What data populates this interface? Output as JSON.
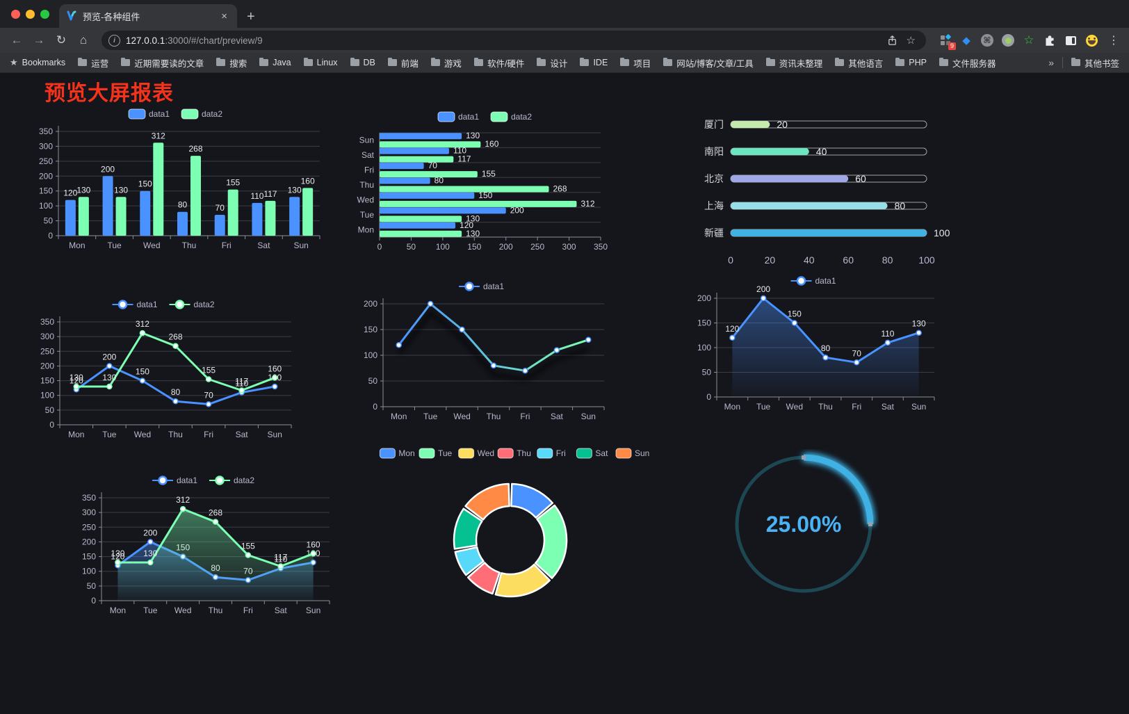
{
  "browser": {
    "tab": {
      "title": "预览-各种组件",
      "close_glyph": "×",
      "new_tab_glyph": "+"
    },
    "nav": {
      "back": "←",
      "forward": "→",
      "reload": "↻",
      "home": "⌂"
    },
    "url": {
      "host": "127.0.0.1",
      "rest": ":3000/#/chart/preview/9"
    },
    "omnibox_icons": {
      "star": "☆"
    },
    "extensions": {
      "badge": "9",
      "gem": "◆",
      "command": "⌘",
      "menu": "⋮"
    },
    "bookmarks": [
      "Bookmarks",
      "运营",
      "近期需要读的文章",
      "搜索",
      "Java",
      "Linux",
      "DB",
      "前端",
      "游戏",
      "软件/硬件",
      "设计",
      "IDE",
      "项目",
      "网站/博客/文章/工具",
      "资讯未整理",
      "其他语言",
      "PHP",
      "文件服务器"
    ],
    "bookmarks_overflow": "»",
    "other_bookmarks": "其他书签",
    "bookmark_star_glyph": "★"
  },
  "page": {
    "title": "预览大屏报表"
  },
  "chart_data": {
    "note": "see charts"
  },
  "charts": {
    "vbar": {
      "type": "bar",
      "categories": [
        "Mon",
        "Tue",
        "Wed",
        "Thu",
        "Fri",
        "Sat",
        "Sun"
      ],
      "series": [
        {
          "name": "data1",
          "color": "#4992ff",
          "values": [
            120,
            200,
            150,
            80,
            70,
            110,
            130
          ]
        },
        {
          "name": "data2",
          "color": "#7cffb2",
          "values": [
            130,
            130,
            312,
            268,
            155,
            117,
            160
          ]
        }
      ],
      "y": {
        "min": 0,
        "max": 350,
        "step": 50
      },
      "labels": true
    },
    "hbar": {
      "type": "hbar",
      "categories": [
        "Mon",
        "Tue",
        "Wed",
        "Thu",
        "Fri",
        "Sat",
        "Sun"
      ],
      "series": [
        {
          "name": "data1",
          "color": "#4992ff",
          "values": [
            120,
            200,
            150,
            80,
            70,
            110,
            130
          ]
        },
        {
          "name": "data2",
          "color": "#7cffb2",
          "values": [
            130,
            130,
            312,
            268,
            155,
            117,
            160
          ]
        }
      ],
      "x": {
        "min": 0,
        "max": 350,
        "step": 50
      },
      "labels": true
    },
    "progress": {
      "type": "progress",
      "max": 100,
      "items": [
        {
          "label": "厦门",
          "value": 20,
          "color": "#c4ebad"
        },
        {
          "label": "南阳",
          "value": 40,
          "color": "#6be6c1"
        },
        {
          "label": "北京",
          "value": 60,
          "color": "#a0a7e6"
        },
        {
          "label": "上海",
          "value": 80,
          "color": "#96dee8"
        },
        {
          "label": "新疆",
          "value": 100,
          "color": "#3fb1e3"
        }
      ],
      "axis_ticks": [
        0,
        20,
        40,
        60,
        80,
        100
      ]
    },
    "line2": {
      "type": "line",
      "categories": [
        "Mon",
        "Tue",
        "Wed",
        "Thu",
        "Fri",
        "Sat",
        "Sun"
      ],
      "series": [
        {
          "name": "data1",
          "color": "#4992ff",
          "values": [
            120,
            200,
            150,
            80,
            70,
            110,
            130
          ]
        },
        {
          "name": "data2",
          "color": "#7cffb2",
          "values": [
            130,
            130,
            312,
            268,
            155,
            117,
            160
          ]
        }
      ],
      "y": {
        "min": 0,
        "max": 350,
        "step": 50
      },
      "labels": true
    },
    "gline": {
      "type": "line",
      "categories": [
        "Mon",
        "Tue",
        "Wed",
        "Thu",
        "Fri",
        "Sat",
        "Sun"
      ],
      "series": [
        {
          "name": "data1",
          "color": "#4992ff",
          "gradient": [
            "#4992ff",
            "#7cffb2"
          ],
          "values": [
            120,
            200,
            150,
            80,
            70,
            110,
            130
          ]
        }
      ],
      "y": {
        "min": 0,
        "max": 200,
        "step": 50
      },
      "labels": false,
      "shadow": true
    },
    "area1": {
      "type": "line",
      "categories": [
        "Mon",
        "Tue",
        "Wed",
        "Thu",
        "Fri",
        "Sat",
        "Sun"
      ],
      "series": [
        {
          "name": "data1",
          "color": "#4992ff",
          "area": true,
          "values": [
            120,
            200,
            150,
            80,
            70,
            110,
            130
          ]
        }
      ],
      "y": {
        "min": 0,
        "max": 200,
        "step": 50
      },
      "labels": true
    },
    "area2": {
      "type": "line",
      "categories": [
        "Mon",
        "Tue",
        "Wed",
        "Thu",
        "Fri",
        "Sat",
        "Sun"
      ],
      "series": [
        {
          "name": "data1",
          "color": "#4992ff",
          "area": true,
          "values": [
            120,
            200,
            150,
            80,
            70,
            110,
            130
          ]
        },
        {
          "name": "data2",
          "color": "#7cffb2",
          "area": true,
          "values": [
            130,
            130,
            312,
            268,
            155,
            117,
            160
          ]
        }
      ],
      "y": {
        "min": 0,
        "max": 350,
        "step": 50
      },
      "labels": true
    },
    "donut": {
      "type": "donut",
      "categories": [
        "Mon",
        "Tue",
        "Wed",
        "Thu",
        "Fri",
        "Sat",
        "Sun"
      ],
      "values": [
        120,
        200,
        150,
        80,
        70,
        110,
        130
      ],
      "colors": [
        "#4992ff",
        "#7cffb2",
        "#fddd60",
        "#ff6e76",
        "#58d9f9",
        "#05c091",
        "#ff8a45"
      ]
    },
    "gauge": {
      "type": "gauge",
      "value": 25,
      "display": "25.00%",
      "color": "#3fb1e3",
      "track": "#1d4752",
      "text_color": "#4ab2f5"
    }
  }
}
